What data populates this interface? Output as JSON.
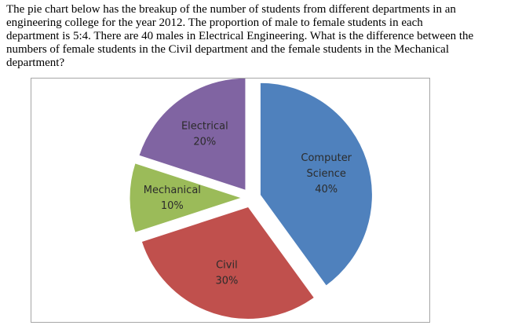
{
  "question": {
    "lines": [
      "The pie chart below has the breakup of the number of students from different departments in an",
      "engineering college for the year 2012. The proportion of male to female students in each",
      "department is 5:4. There are 40 males in Electrical Engineering. What is the difference between the",
      "numbers of female students in the Civil department and the female students in the Mechanical",
      "department?"
    ]
  },
  "chart_data": {
    "type": "pie",
    "title": "",
    "slices": [
      {
        "label_lines": [
          "Computer",
          "Science"
        ],
        "percent_label": "40%",
        "value": 40,
        "color": "#4f81bd"
      },
      {
        "label_lines": [
          "Civil"
        ],
        "percent_label": "30%",
        "value": 30,
        "color": "#c0504d"
      },
      {
        "label_lines": [
          "Mechanical"
        ],
        "percent_label": "10%",
        "value": 10,
        "color": "#9bbb59"
      },
      {
        "label_lines": [
          "Electrical"
        ],
        "percent_label": "20%",
        "value": 20,
        "color": "#8064a2"
      }
    ],
    "exploded": true,
    "legend": "none"
  }
}
